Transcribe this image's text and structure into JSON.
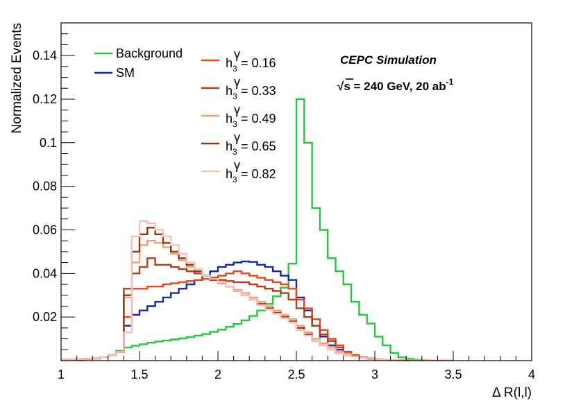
{
  "chart_data": {
    "type": "line",
    "step": true,
    "title": "",
    "xlabel": "Δ R(l,l)",
    "ylabel": "Normalized Events",
    "xlim": [
      1,
      4
    ],
    "ylim": [
      0,
      0.155
    ],
    "bin_edges_start": 1.0,
    "bin_width": 0.05,
    "x_ticks": [
      1,
      1.5,
      2,
      2.5,
      3,
      3.5,
      4
    ],
    "x_tick_labels": [
      "1",
      "1.5",
      "2",
      "2.5",
      "3",
      "3.5",
      "4"
    ],
    "y_ticks": [
      0.02,
      0.04,
      0.06,
      0.08,
      0.1,
      0.12,
      0.14
    ],
    "y_tick_labels": [
      "0.02",
      "0.04",
      "0.06",
      "0.08",
      "0.1",
      "0.12",
      "0.14"
    ],
    "annotations": {
      "experiment": "CEPC Simulation",
      "energy_prefix": "√s = 240 GeV, 20 ab",
      "energy_sup": "-1"
    },
    "series": [
      {
        "name": "Background",
        "label": "Background",
        "color": "#22c93a",
        "values": [
          0.0002,
          0.0003,
          0.0005,
          0.0007,
          0.001,
          0.0015,
          0.0025,
          0.0045,
          0.006,
          0.0068,
          0.0075,
          0.0082,
          0.0088,
          0.0092,
          0.0097,
          0.0102,
          0.0108,
          0.0115,
          0.0122,
          0.0132,
          0.0142,
          0.0155,
          0.0168,
          0.0185,
          0.0205,
          0.023,
          0.026,
          0.0295,
          0.0335,
          0.0445,
          0.12,
          0.1,
          0.07,
          0.06,
          0.047,
          0.041,
          0.035,
          0.027,
          0.021,
          0.017,
          0.011,
          0.007,
          0.0035,
          0.0015,
          0.0008,
          0.0004,
          0.0002,
          0.0001,
          0.0001,
          0.0001
        ]
      },
      {
        "name": "SM",
        "label": "SM",
        "color": "#1527b0",
        "values": [
          0.0005,
          0.0005,
          0.0006,
          0.0008,
          0.001,
          0.0015,
          0.0025,
          0.004,
          0.016,
          0.021,
          0.023,
          0.025,
          0.027,
          0.029,
          0.031,
          0.033,
          0.035,
          0.037,
          0.039,
          0.041,
          0.043,
          0.044,
          0.045,
          0.0455,
          0.0453,
          0.044,
          0.043,
          0.041,
          0.039,
          0.037,
          0.029,
          0.023,
          0.016,
          0.011,
          0.007,
          0.005,
          0.003,
          0.002,
          0.0012,
          0.0008,
          0.0005,
          0.0003,
          0.0002,
          0.0001,
          0.0001,
          0.0001,
          0.0001,
          0.0001,
          0.0001,
          0.0001
        ]
      },
      {
        "name": "h3g_016",
        "label_main": "h",
        "label_sub": "3",
        "label_sup": "γ",
        "label_value": " = 0.16",
        "color": "#e8461e",
        "values": [
          0.0005,
          0.0005,
          0.0006,
          0.0008,
          0.001,
          0.0015,
          0.0025,
          0.004,
          0.02,
          0.033,
          0.033,
          0.034,
          0.034,
          0.035,
          0.0355,
          0.036,
          0.0365,
          0.037,
          0.0375,
          0.038,
          0.039,
          0.04,
          0.041,
          0.04,
          0.039,
          0.038,
          0.037,
          0.036,
          0.035,
          0.033,
          0.028,
          0.024,
          0.019,
          0.014,
          0.01,
          0.007,
          0.004,
          0.0025,
          0.0015,
          0.001,
          0.0006,
          0.0004,
          0.0003,
          0.0002,
          0.0001,
          0.0001,
          0.0001,
          0.0001,
          0.0001,
          0.0001
        ]
      },
      {
        "name": "h3g_033",
        "label_main": "h",
        "label_sub": "3",
        "label_sup": "γ",
        "label_value": " = 0.33",
        "color": "#b83a16",
        "values": [
          0.0005,
          0.0005,
          0.0006,
          0.0008,
          0.001,
          0.0015,
          0.0025,
          0.004,
          0.033,
          0.04,
          0.043,
          0.047,
          0.044,
          0.044,
          0.043,
          0.042,
          0.041,
          0.04,
          0.039,
          0.038,
          0.037,
          0.0365,
          0.036,
          0.036,
          0.035,
          0.034,
          0.033,
          0.032,
          0.031,
          0.028,
          0.024,
          0.02,
          0.016,
          0.012,
          0.009,
          0.006,
          0.004,
          0.0025,
          0.0015,
          0.001,
          0.0006,
          0.0004,
          0.0003,
          0.0002,
          0.0001,
          0.0001,
          0.0001,
          0.0001,
          0.0001,
          0.0001
        ]
      },
      {
        "name": "h3g_049",
        "label_main": "h",
        "label_sub": "3",
        "label_sup": "γ",
        "label_value": " = 0.49",
        "color": "#f2a070",
        "values": [
          0.0005,
          0.0005,
          0.0006,
          0.0008,
          0.001,
          0.0015,
          0.0025,
          0.004,
          0.029,
          0.045,
          0.053,
          0.055,
          0.054,
          0.052,
          0.049,
          0.046,
          0.043,
          0.041,
          0.039,
          0.037,
          0.0355,
          0.034,
          0.0325,
          0.031,
          0.029,
          0.027,
          0.025,
          0.023,
          0.021,
          0.019,
          0.016,
          0.013,
          0.01,
          0.008,
          0.006,
          0.004,
          0.003,
          0.002,
          0.0013,
          0.0009,
          0.0006,
          0.0004,
          0.0003,
          0.0002,
          0.0001,
          0.0001,
          0.0001,
          0.0001,
          0.0001,
          0.0001
        ]
      },
      {
        "name": "h3g_065",
        "label_main": "h",
        "label_sub": "3",
        "label_sup": "γ",
        "label_value": " = 0.65",
        "color": "#8c3612",
        "values": [
          0.0005,
          0.0005,
          0.0006,
          0.0008,
          0.001,
          0.0015,
          0.0025,
          0.004,
          0.03,
          0.05,
          0.058,
          0.061,
          0.058,
          0.054,
          0.05,
          0.047,
          0.044,
          0.041,
          0.039,
          0.037,
          0.036,
          0.034,
          0.032,
          0.03,
          0.028,
          0.026,
          0.024,
          0.022,
          0.02,
          0.018,
          0.015,
          0.012,
          0.009,
          0.007,
          0.005,
          0.0035,
          0.0025,
          0.0018,
          0.0012,
          0.0008,
          0.0005,
          0.0004,
          0.0003,
          0.0002,
          0.0001,
          0.0001,
          0.0001,
          0.0001,
          0.0001,
          0.0001
        ]
      },
      {
        "name": "h3g_082",
        "label_main": "h",
        "label_sub": "3",
        "label_sup": "γ",
        "label_value": " = 0.82",
        "color": "#f7c0b8",
        "values": [
          0.0005,
          0.0005,
          0.0006,
          0.0008,
          0.001,
          0.0015,
          0.0025,
          0.004,
          0.013,
          0.057,
          0.064,
          0.063,
          0.06,
          0.057,
          0.053,
          0.049,
          0.045,
          0.042,
          0.039,
          0.0375,
          0.036,
          0.034,
          0.032,
          0.03,
          0.028,
          0.0255,
          0.0235,
          0.0215,
          0.0195,
          0.0175,
          0.014,
          0.0115,
          0.009,
          0.007,
          0.005,
          0.0035,
          0.0025,
          0.0018,
          0.0012,
          0.0008,
          0.0005,
          0.0004,
          0.0003,
          0.0002,
          0.0001,
          0.0001,
          0.0001,
          0.0001,
          0.0001,
          0.0001
        ]
      }
    ]
  }
}
